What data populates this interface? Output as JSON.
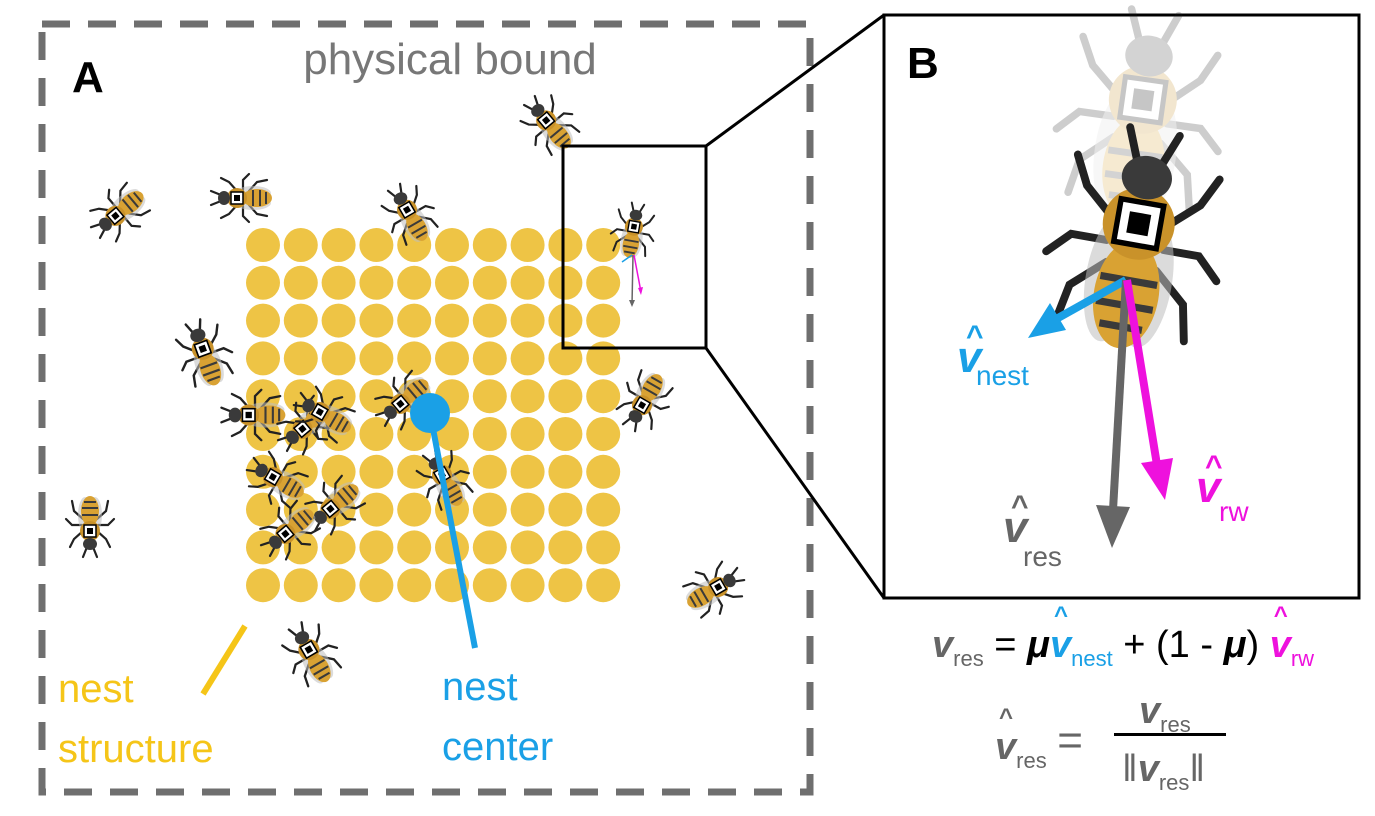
{
  "panel_a": {
    "letter": "A",
    "bound_label": "physical bound",
    "nest_structure_label_line1": "nest",
    "nest_structure_label_line2": "structure",
    "nest_center_label_line1": "nest",
    "nest_center_label_line2": "center",
    "nest_grid": {
      "rows": 10,
      "cols": 10
    }
  },
  "panel_b": {
    "letter": "B",
    "vectors": [
      {
        "name": "nest",
        "symbol": "v",
        "hat": "^",
        "subscript": "nest",
        "color": "#1aa0e6"
      },
      {
        "name": "res",
        "symbol": "v",
        "hat": "^",
        "subscript": "res",
        "color": "#666666"
      },
      {
        "name": "rw",
        "symbol": "v",
        "hat": "^",
        "subscript": "rw",
        "color": "#ee11dd"
      }
    ]
  },
  "equations": {
    "eq1": {
      "lhs_symbol": "v",
      "lhs_sub": "res",
      "equals": "=",
      "mu": "μ",
      "term1_symbol": "v",
      "term1_hat": "^",
      "term1_sub": "nest",
      "plus": "+",
      "paren": "(1 - ",
      "mu2": "μ",
      "paren_close": ")",
      "term2_symbol": "v",
      "term2_hat": "^",
      "term2_sub": "rw"
    },
    "eq2": {
      "lhs_symbol": "v",
      "lhs_hat": "^",
      "lhs_sub": "res",
      "equals": "=",
      "num_symbol": "v",
      "num_sub": "res",
      "den_bar_left": "‖",
      "den_symbol": "v",
      "den_sub": "res",
      "den_bar_right": "‖"
    }
  },
  "colors": {
    "nest_structure": "#f5c518",
    "nest_cell": "#eec445",
    "nest_center": "#1aa0e6",
    "bound": "#6f6f6f",
    "rw_vector": "#ee11dd",
    "res_vector": "#666666",
    "bee_body": "#d9a233",
    "bee_dark": "#2a2a2a"
  }
}
